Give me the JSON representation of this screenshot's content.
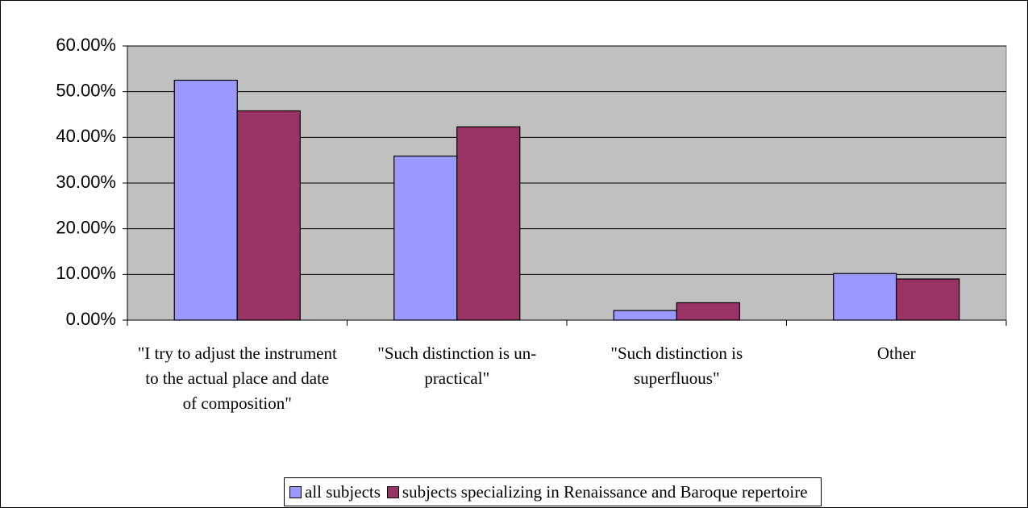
{
  "chart_data": {
    "type": "bar",
    "categories": [
      "\"I try to adjust the instrument to the actual place and date of composition\"",
      "\"Such distinction is un-practical\"",
      "\"Such distinction is superfluous\"",
      "Other"
    ],
    "series": [
      {
        "name": "all subjects",
        "color": "#9999ff",
        "values": [
          52.5,
          35.9,
          2.1,
          10.2
        ]
      },
      {
        "name": "subjects specializing in Renaissance and Baroque repertoire",
        "color": "#993366",
        "values": [
          45.8,
          42.3,
          3.8,
          9.0
        ]
      }
    ],
    "ylim": [
      0,
      60
    ],
    "yticks": [
      {
        "value": 0,
        "label": "0.00%"
      },
      {
        "value": 10,
        "label": "10.00%"
      },
      {
        "value": 20,
        "label": "20.00%"
      },
      {
        "value": 30,
        "label": "30.00%"
      },
      {
        "value": 40,
        "label": "40.00%"
      },
      {
        "value": 50,
        "label": "50.00%"
      },
      {
        "value": 60,
        "label": "60.00%"
      }
    ],
    "grid": true,
    "legend": "bottom"
  }
}
